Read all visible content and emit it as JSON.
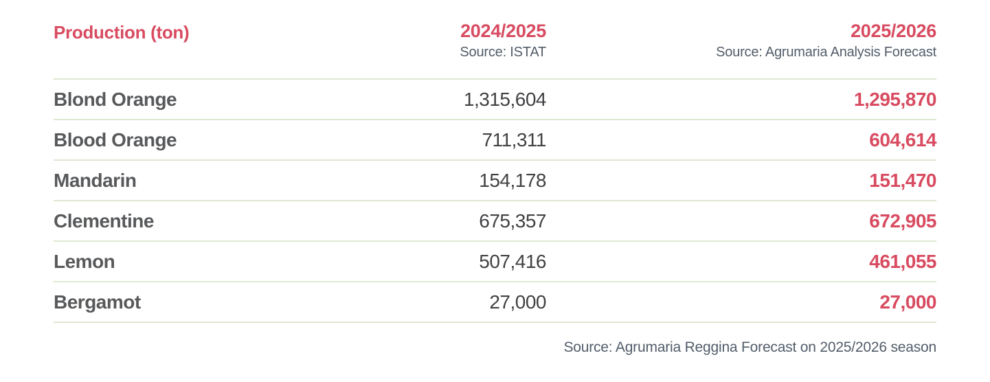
{
  "table": {
    "title": "Production (ton)",
    "columns": [
      {
        "label": "2024/2025",
        "source": "Source: ISTAT"
      },
      {
        "label": "2025/2026",
        "source": "Source: Agrumaria Analysis Forecast"
      }
    ],
    "rows": [
      {
        "name": "Blond Orange",
        "v1": "1,315,604",
        "v2": "1,295,870"
      },
      {
        "name": "Blood Orange",
        "v1": "711,311",
        "v2": "604,614"
      },
      {
        "name": "Mandarin",
        "v1": "154,178",
        "v2": "151,470"
      },
      {
        "name": "Clementine",
        "v1": "675,357",
        "v2": "672,905"
      },
      {
        "name": "Lemon",
        "v1": "507,416",
        "v2": "461,055"
      },
      {
        "name": "Bergamot",
        "v1": "27,000",
        "v2": "27,000"
      }
    ],
    "footer": "Source: Agrumaria Reggina Forecast on 2025/2026 season"
  },
  "colors": {
    "accent_red": "#d84b60",
    "name_gray": "#58595b",
    "value_dark": "#414144",
    "source_gray": "#525c69",
    "divider_green": "#dfe8d2",
    "background": "#ffffff"
  },
  "chart_data": {
    "type": "table",
    "title": "Production (ton)",
    "categories": [
      "Blond Orange",
      "Blood Orange",
      "Mandarin",
      "Clementine",
      "Lemon",
      "Bergamot"
    ],
    "series": [
      {
        "name": "2024/2025",
        "source": "ISTAT",
        "values": [
          1315604,
          711311,
          154178,
          675357,
          507416,
          27000
        ]
      },
      {
        "name": "2025/2026",
        "source": "Agrumaria Analysis Forecast",
        "values": [
          1295870,
          604614,
          151470,
          672905,
          461055,
          27000
        ]
      }
    ],
    "footnote": "Source: Agrumaria Reggina Forecast on 2025/2026 season",
    "legend_position": "none",
    "grid": "horizontal-row-dividers-only"
  }
}
